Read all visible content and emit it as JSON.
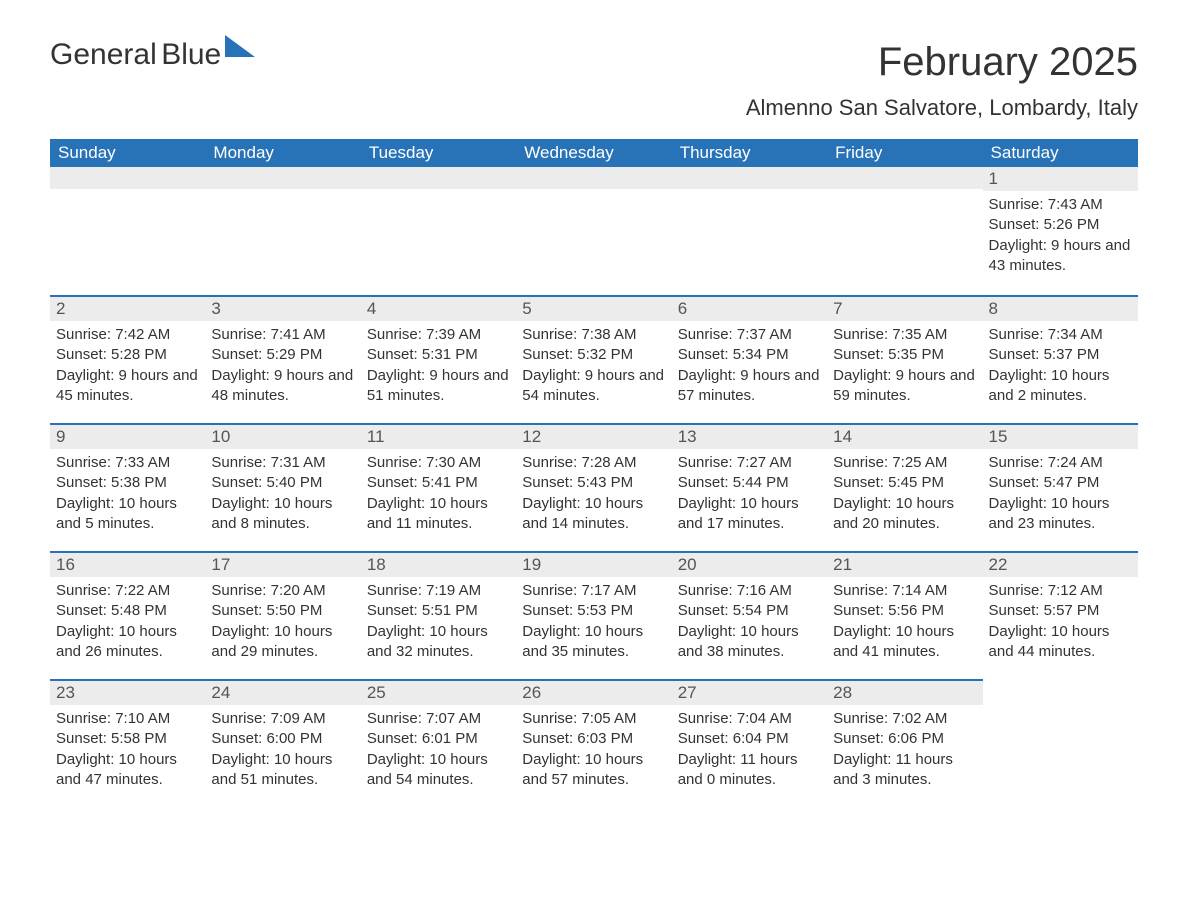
{
  "logo": {
    "line1": "General",
    "line2": "Blue"
  },
  "title": "February 2025",
  "location": "Almenno San Salvatore, Lombardy, Italy",
  "weekdays": [
    "Sunday",
    "Monday",
    "Tuesday",
    "Wednesday",
    "Thursday",
    "Friday",
    "Saturday"
  ],
  "colors": {
    "header_bg": "#2873b8",
    "header_text": "#ffffff",
    "daynum_bg": "#ececec",
    "border_top": "#2873b8",
    "body_text": "#333333",
    "logo_blue": "#2873b8"
  },
  "fonts": {
    "title_size_pt": 30,
    "location_size_pt": 16,
    "header_size_pt": 13,
    "body_size_pt": 11
  },
  "weeks": [
    [
      null,
      null,
      null,
      null,
      null,
      null,
      {
        "n": "1",
        "sr": "Sunrise: 7:43 AM",
        "ss": "Sunset: 5:26 PM",
        "dl": "Daylight: 9 hours and 43 minutes."
      }
    ],
    [
      {
        "n": "2",
        "sr": "Sunrise: 7:42 AM",
        "ss": "Sunset: 5:28 PM",
        "dl": "Daylight: 9 hours and 45 minutes."
      },
      {
        "n": "3",
        "sr": "Sunrise: 7:41 AM",
        "ss": "Sunset: 5:29 PM",
        "dl": "Daylight: 9 hours and 48 minutes."
      },
      {
        "n": "4",
        "sr": "Sunrise: 7:39 AM",
        "ss": "Sunset: 5:31 PM",
        "dl": "Daylight: 9 hours and 51 minutes."
      },
      {
        "n": "5",
        "sr": "Sunrise: 7:38 AM",
        "ss": "Sunset: 5:32 PM",
        "dl": "Daylight: 9 hours and 54 minutes."
      },
      {
        "n": "6",
        "sr": "Sunrise: 7:37 AM",
        "ss": "Sunset: 5:34 PM",
        "dl": "Daylight: 9 hours and 57 minutes."
      },
      {
        "n": "7",
        "sr": "Sunrise: 7:35 AM",
        "ss": "Sunset: 5:35 PM",
        "dl": "Daylight: 9 hours and 59 minutes."
      },
      {
        "n": "8",
        "sr": "Sunrise: 7:34 AM",
        "ss": "Sunset: 5:37 PM",
        "dl": "Daylight: 10 hours and 2 minutes."
      }
    ],
    [
      {
        "n": "9",
        "sr": "Sunrise: 7:33 AM",
        "ss": "Sunset: 5:38 PM",
        "dl": "Daylight: 10 hours and 5 minutes."
      },
      {
        "n": "10",
        "sr": "Sunrise: 7:31 AM",
        "ss": "Sunset: 5:40 PM",
        "dl": "Daylight: 10 hours and 8 minutes."
      },
      {
        "n": "11",
        "sr": "Sunrise: 7:30 AM",
        "ss": "Sunset: 5:41 PM",
        "dl": "Daylight: 10 hours and 11 minutes."
      },
      {
        "n": "12",
        "sr": "Sunrise: 7:28 AM",
        "ss": "Sunset: 5:43 PM",
        "dl": "Daylight: 10 hours and 14 minutes."
      },
      {
        "n": "13",
        "sr": "Sunrise: 7:27 AM",
        "ss": "Sunset: 5:44 PM",
        "dl": "Daylight: 10 hours and 17 minutes."
      },
      {
        "n": "14",
        "sr": "Sunrise: 7:25 AM",
        "ss": "Sunset: 5:45 PM",
        "dl": "Daylight: 10 hours and 20 minutes."
      },
      {
        "n": "15",
        "sr": "Sunrise: 7:24 AM",
        "ss": "Sunset: 5:47 PM",
        "dl": "Daylight: 10 hours and 23 minutes."
      }
    ],
    [
      {
        "n": "16",
        "sr": "Sunrise: 7:22 AM",
        "ss": "Sunset: 5:48 PM",
        "dl": "Daylight: 10 hours and 26 minutes."
      },
      {
        "n": "17",
        "sr": "Sunrise: 7:20 AM",
        "ss": "Sunset: 5:50 PM",
        "dl": "Daylight: 10 hours and 29 minutes."
      },
      {
        "n": "18",
        "sr": "Sunrise: 7:19 AM",
        "ss": "Sunset: 5:51 PM",
        "dl": "Daylight: 10 hours and 32 minutes."
      },
      {
        "n": "19",
        "sr": "Sunrise: 7:17 AM",
        "ss": "Sunset: 5:53 PM",
        "dl": "Daylight: 10 hours and 35 minutes."
      },
      {
        "n": "20",
        "sr": "Sunrise: 7:16 AM",
        "ss": "Sunset: 5:54 PM",
        "dl": "Daylight: 10 hours and 38 minutes."
      },
      {
        "n": "21",
        "sr": "Sunrise: 7:14 AM",
        "ss": "Sunset: 5:56 PM",
        "dl": "Daylight: 10 hours and 41 minutes."
      },
      {
        "n": "22",
        "sr": "Sunrise: 7:12 AM",
        "ss": "Sunset: 5:57 PM",
        "dl": "Daylight: 10 hours and 44 minutes."
      }
    ],
    [
      {
        "n": "23",
        "sr": "Sunrise: 7:10 AM",
        "ss": "Sunset: 5:58 PM",
        "dl": "Daylight: 10 hours and 47 minutes."
      },
      {
        "n": "24",
        "sr": "Sunrise: 7:09 AM",
        "ss": "Sunset: 6:00 PM",
        "dl": "Daylight: 10 hours and 51 minutes."
      },
      {
        "n": "25",
        "sr": "Sunrise: 7:07 AM",
        "ss": "Sunset: 6:01 PM",
        "dl": "Daylight: 10 hours and 54 minutes."
      },
      {
        "n": "26",
        "sr": "Sunrise: 7:05 AM",
        "ss": "Sunset: 6:03 PM",
        "dl": "Daylight: 10 hours and 57 minutes."
      },
      {
        "n": "27",
        "sr": "Sunrise: 7:04 AM",
        "ss": "Sunset: 6:04 PM",
        "dl": "Daylight: 11 hours and 0 minutes."
      },
      {
        "n": "28",
        "sr": "Sunrise: 7:02 AM",
        "ss": "Sunset: 6:06 PM",
        "dl": "Daylight: 11 hours and 3 minutes."
      },
      null
    ]
  ]
}
